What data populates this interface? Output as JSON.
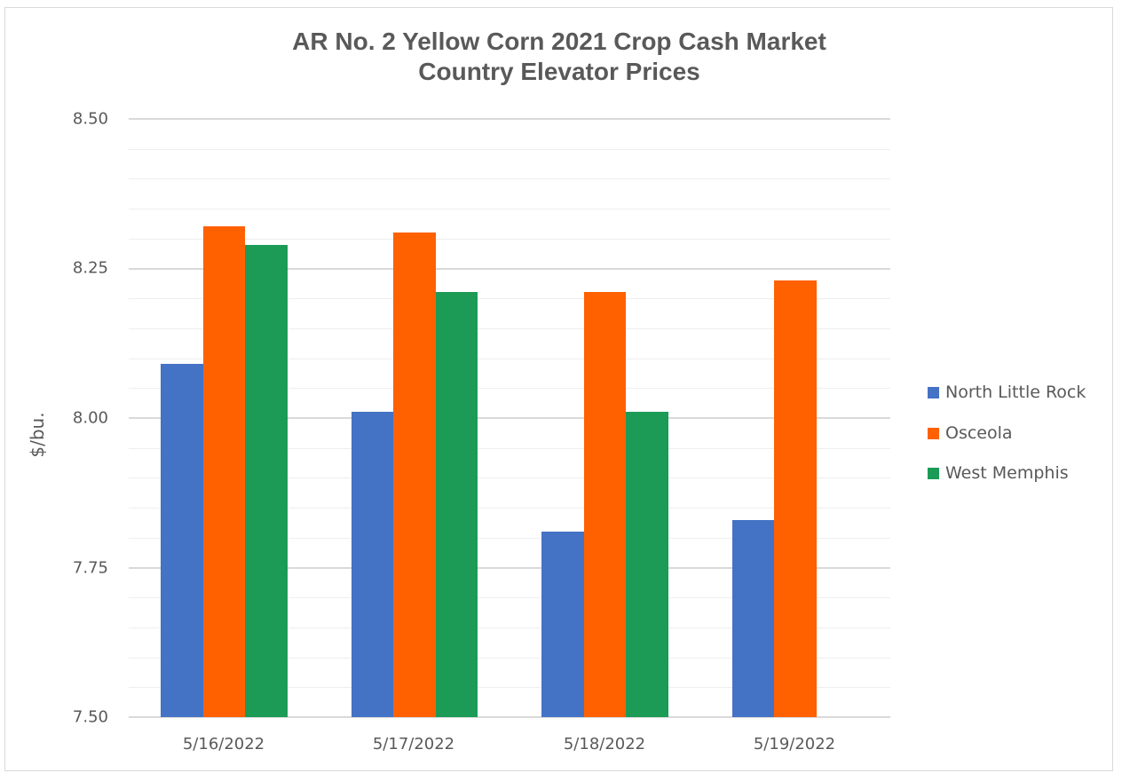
{
  "chart_data": {
    "type": "bar",
    "title": "AR No. 2 Yellow Corn 2021 Crop Cash Market Country Elevator Prices",
    "title_lines": [
      "AR No. 2 Yellow Corn 2021 Crop Cash Market",
      "Country Elevator Prices"
    ],
    "xlabel": "",
    "ylabel": "$/bu.",
    "ylim": [
      7.5,
      8.5
    ],
    "yticks": [
      "8.50",
      "8.25",
      "8.00",
      "7.75",
      "7.50"
    ],
    "grid": true,
    "legend_position": "right",
    "categories": [
      "5/16/2022",
      "5/17/2022",
      "5/18/2022",
      "5/19/2022"
    ],
    "series": [
      {
        "name": "North Little Rock",
        "color": "#4472c4",
        "values": [
          8.09,
          8.01,
          7.81,
          7.83
        ]
      },
      {
        "name": "Osceola",
        "color": "#ff6000",
        "values": [
          8.32,
          8.31,
          8.21,
          8.23
        ]
      },
      {
        "name": "West Memphis",
        "color": "#1b9b55",
        "values": [
          8.29,
          8.21,
          8.01,
          null
        ]
      }
    ]
  }
}
